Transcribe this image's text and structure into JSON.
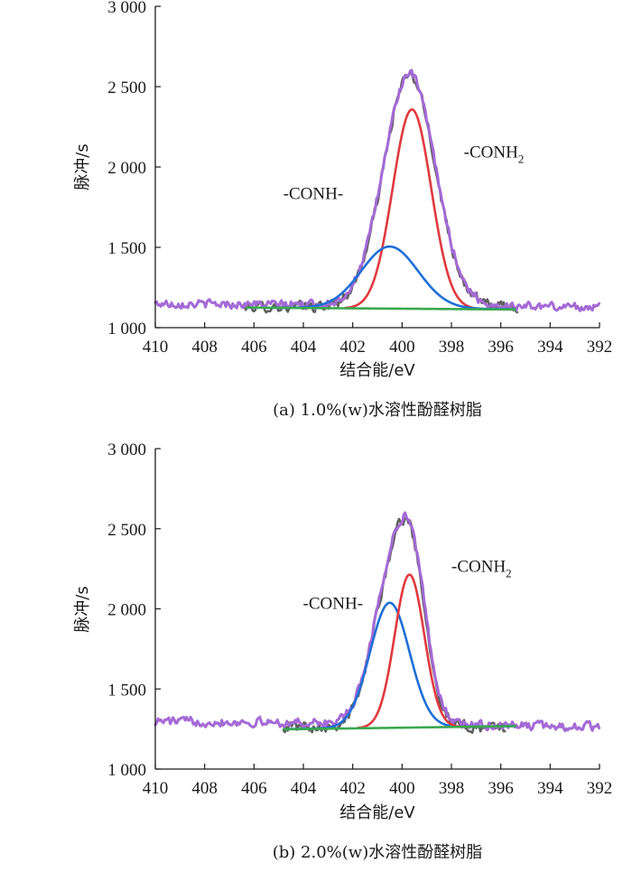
{
  "chart_data": [
    {
      "type": "line",
      "caption": "(a) 1.0%(w)水溶性酚醛树脂",
      "xlabel": "结合能/eV",
      "ylabel": "脉冲/s",
      "xlim": [
        410,
        392
      ],
      "ylim": [
        1000,
        3000
      ],
      "x_ticks": [
        "410",
        "408",
        "406",
        "404",
        "402",
        "400",
        "398",
        "396",
        "394",
        "392"
      ],
      "y_ticks": [
        "1 000",
        "1 500",
        "2 000",
        "2 500",
        "3 000"
      ],
      "annotations": [
        {
          "text": "-CONH-",
          "x": 403.6,
          "y": 1800
        },
        {
          "text": "-CONH",
          "sub": "2",
          "x": 397.5,
          "y": 2060
        }
      ],
      "series": [
        {
          "role": "raw",
          "color": "#5f5f5f",
          "x_range": [
            406.5,
            395.3
          ],
          "baseline_start": 1130,
          "baseline_end": 1130,
          "noise": 28,
          "peaks": [
            {
              "center": 399.7,
              "height": 1440,
              "width": 1.05
            }
          ]
        },
        {
          "role": "envelope",
          "color": "#a46ad6",
          "x_range": [
            410,
            392
          ],
          "baseline_start": 1150,
          "baseline_end": 1130,
          "noise": 22,
          "peaks": [
            {
              "center": 399.7,
              "height": 1440,
              "width": 1.05
            }
          ]
        },
        {
          "role": "component",
          "color": "#e03a3e",
          "x_range": [
            402.3,
            396.4
          ],
          "baseline_start": 1120,
          "baseline_end": 1115,
          "noise": 0,
          "peaks": [
            {
              "center": 399.6,
              "height": 1240,
              "width": 0.78
            }
          ]
        },
        {
          "role": "component",
          "color": "#1f6fd6",
          "x_range": [
            406.3,
            395.4
          ],
          "baseline_start": 1125,
          "baseline_end": 1115,
          "noise": 0,
          "peaks": [
            {
              "center": 400.5,
              "height": 385,
              "width": 1.15
            }
          ]
        },
        {
          "role": "background",
          "color": "#3aa84e",
          "x_range": [
            406.3,
            395.4
          ],
          "baseline_start": 1125,
          "baseline_end": 1113,
          "noise": 0,
          "peaks": []
        }
      ]
    },
    {
      "type": "line",
      "caption": "(b) 2.0%(w)水溶性酚醛树脂",
      "xlabel": "结合能/eV",
      "ylabel": "脉冲/s",
      "xlim": [
        410,
        392
      ],
      "ylim": [
        1000,
        3000
      ],
      "x_ticks": [
        "410",
        "408",
        "406",
        "404",
        "402",
        "400",
        "398",
        "396",
        "394",
        "392"
      ],
      "y_ticks": [
        "1 000",
        "1 500",
        "2 000",
        "2 500",
        "3 000"
      ],
      "annotations": [
        {
          "text": "-CONH-",
          "x": 402.8,
          "y": 2000
        },
        {
          "text": "-CONH",
          "sub": "2",
          "x": 398.0,
          "y": 2230
        }
      ],
      "series": [
        {
          "role": "raw",
          "color": "#5f5f5f",
          "x_range": [
            404.8,
            395.8
          ],
          "baseline_start": 1270,
          "baseline_end": 1260,
          "noise": 30,
          "peaks": [
            {
              "center": 400.6,
              "height": 760,
              "width": 0.72
            },
            {
              "center": 399.6,
              "height": 930,
              "width": 0.62
            }
          ]
        },
        {
          "role": "envelope",
          "color": "#a46ad6",
          "x_range": [
            410,
            392
          ],
          "baseline_start": 1300,
          "baseline_end": 1265,
          "noise": 24,
          "peaks": [
            {
              "center": 400.6,
              "height": 760,
              "width": 0.72
            },
            {
              "center": 399.6,
              "height": 930,
              "width": 0.62
            }
          ]
        },
        {
          "role": "component",
          "color": "#1f6fd6",
          "x_range": [
            404.6,
            395.4
          ],
          "baseline_start": 1250,
          "baseline_end": 1268,
          "noise": 0,
          "peaks": [
            {
              "center": 400.5,
              "height": 780,
              "width": 0.8
            }
          ]
        },
        {
          "role": "component",
          "color": "#e03a3e",
          "x_range": [
            401.8,
            397.5
          ],
          "baseline_start": 1255,
          "baseline_end": 1262,
          "noise": 0,
          "peaks": [
            {
              "center": 399.7,
              "height": 955,
              "width": 0.6
            }
          ]
        },
        {
          "role": "background",
          "color": "#3aa84e",
          "x_range": [
            404.8,
            395.4
          ],
          "baseline_start": 1248,
          "baseline_end": 1268,
          "noise": 0,
          "peaks": []
        }
      ]
    }
  ]
}
